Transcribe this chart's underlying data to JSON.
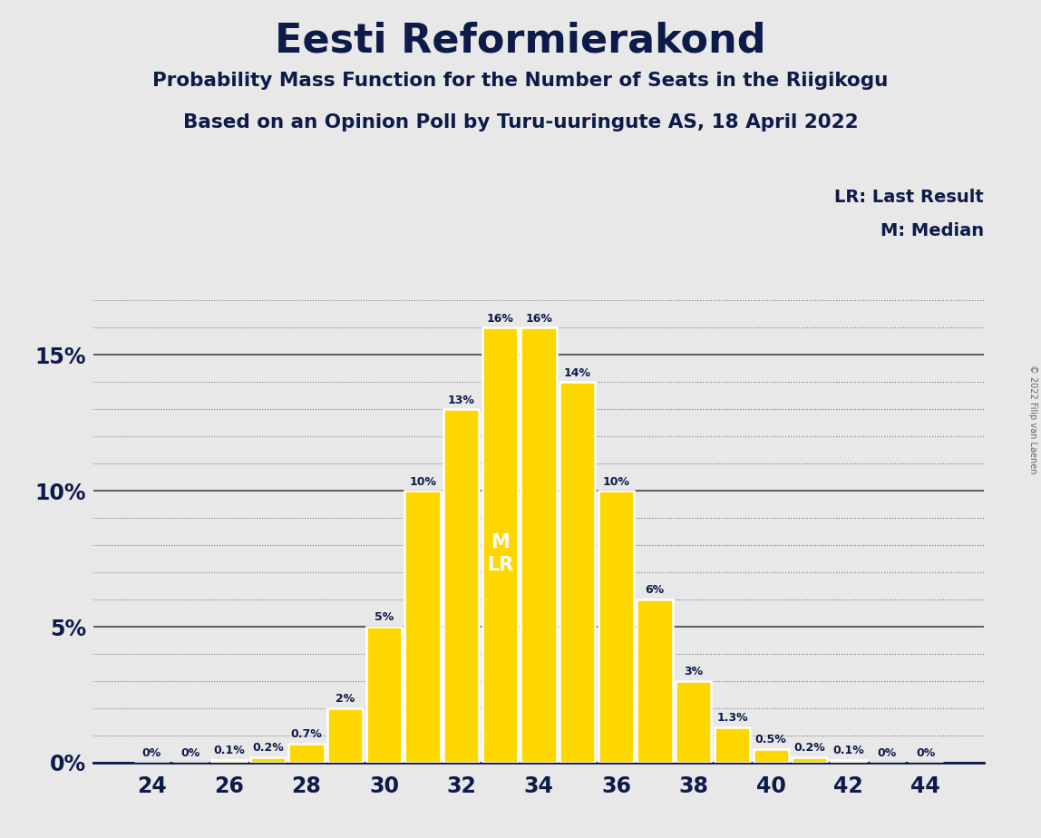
{
  "title": "Eesti Reformierakond",
  "subtitle1": "Probability Mass Function for the Number of Seats in the Riigikogu",
  "subtitle2": "Based on an Opinion Poll by Turu-uuringute AS, 18 April 2022",
  "copyright": "© 2022 Filip van Laenen",
  "seats": [
    24,
    25,
    26,
    27,
    28,
    29,
    30,
    31,
    32,
    33,
    34,
    35,
    36,
    37,
    38,
    39,
    40,
    41,
    42,
    43,
    44
  ],
  "probabilities": [
    0.0,
    0.0,
    0.1,
    0.2,
    0.7,
    2.0,
    5.0,
    10.0,
    13.0,
    16.0,
    16.0,
    14.0,
    10.0,
    6.0,
    3.0,
    1.3,
    0.5,
    0.2,
    0.1,
    0.0,
    0.0
  ],
  "bar_color": "#FFD700",
  "bar_edge_color": "#FFFFFF",
  "median": 33,
  "last_result": 33,
  "background_color": "#E8E8E8",
  "plot_background_color": "#E8E8E8",
  "text_color": "#0D1B4B",
  "legend_lr": "LR: Last Result",
  "legend_m": "M: Median",
  "bar_labels": {
    "24": "0%",
    "25": "0%",
    "26": "0.1%",
    "27": "0.2%",
    "28": "0.7%",
    "29": "2%",
    "30": "5%",
    "31": "10%",
    "32": "13%",
    "33": "16%",
    "34": "16%",
    "35": "14%",
    "36": "10%",
    "37": "6%",
    "38": "3%",
    "39": "1.3%",
    "40": "0.5%",
    "41": "0.2%",
    "42": "0.1%",
    "43": "0%",
    "44": "0%"
  },
  "ytick_vals": [
    0,
    5,
    10,
    15
  ],
  "ylabel_ticks": [
    "0%",
    "5%",
    "10%",
    "15%"
  ],
  "xlim": [
    22.5,
    45.5
  ],
  "ylim": [
    0,
    18.5
  ],
  "xticks": [
    24,
    26,
    28,
    30,
    32,
    34,
    36,
    38,
    40,
    42,
    44
  ],
  "grid_minor_step": 1,
  "grid_major_vals": [
    0,
    5,
    10,
    15
  ],
  "dotted_grid_vals": [
    1,
    2,
    3,
    4,
    6,
    7,
    8,
    9,
    11,
    12,
    13,
    14,
    16,
    17
  ]
}
